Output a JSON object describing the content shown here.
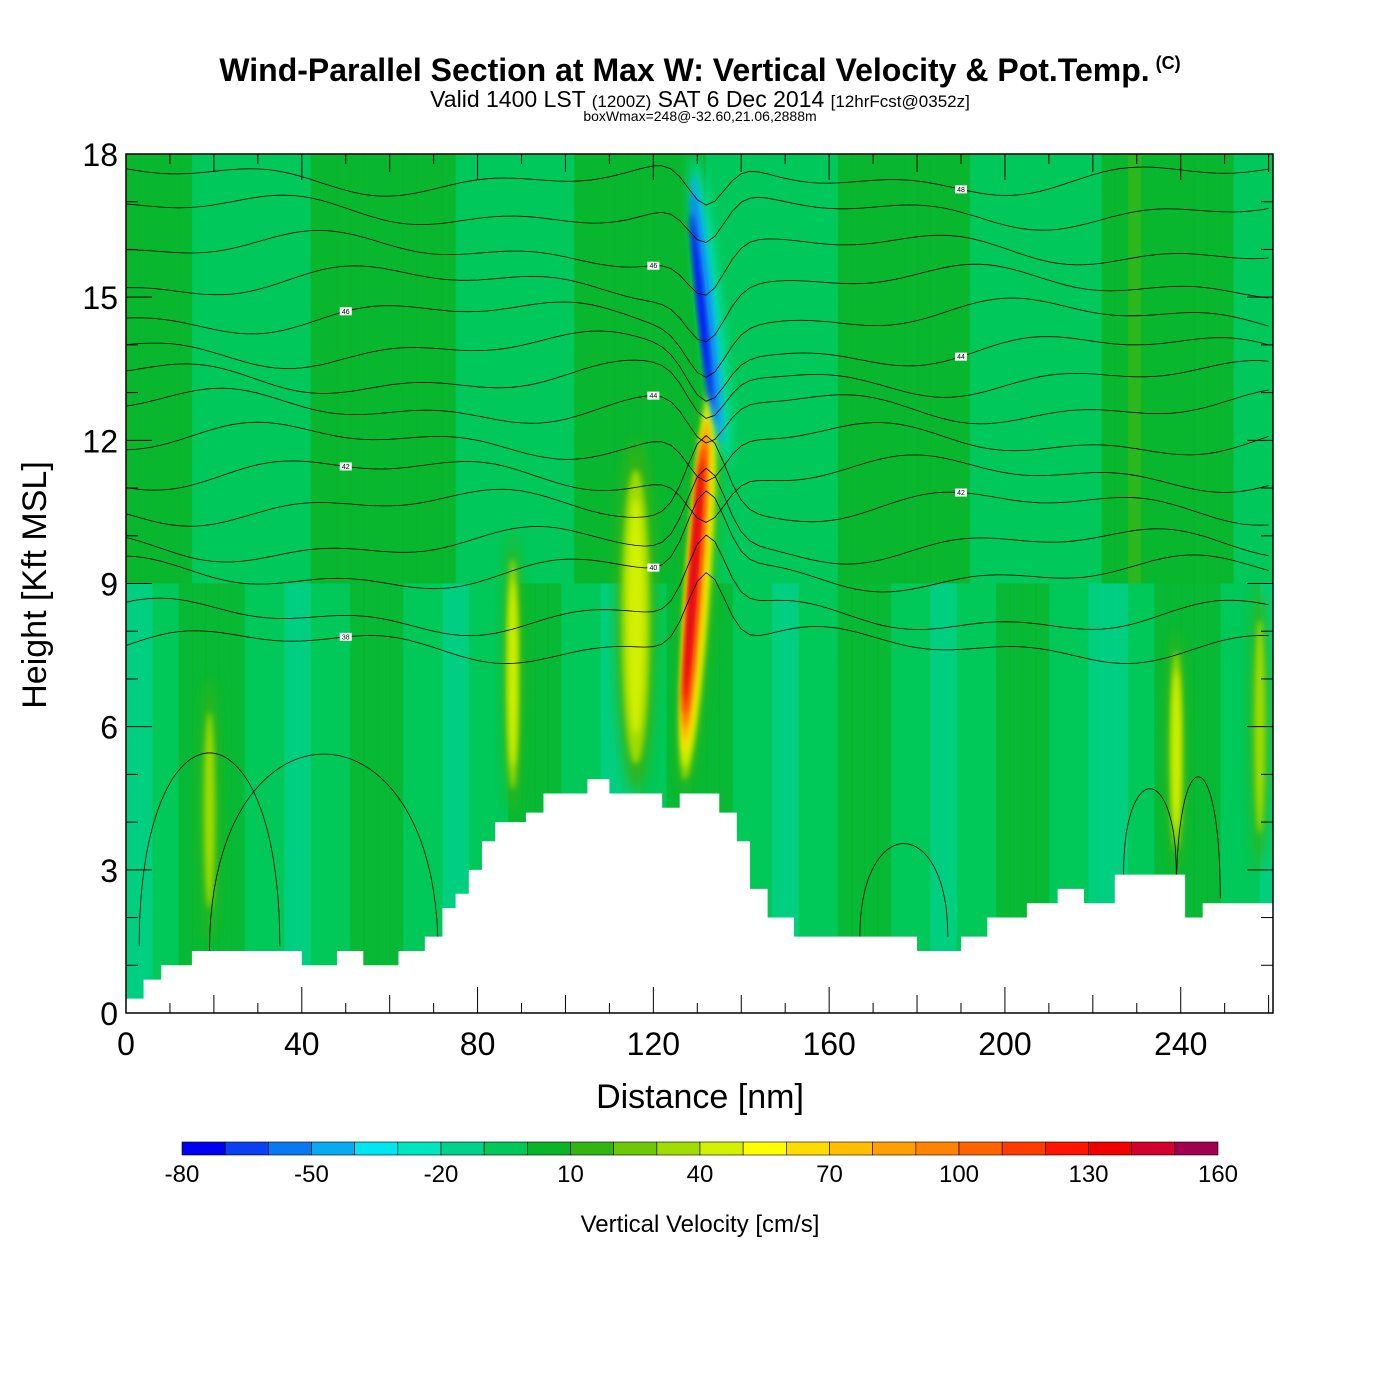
{
  "header": {
    "title": "Wind-Parallel Section at Max W: Vertical Velocity & Pot.Temp.",
    "copyright": "(C)",
    "valid_prefix": "Valid 1400 LST",
    "valid_utc": "(1200Z)",
    "valid_date": "SAT 6 Dec 2014",
    "forecast": "[12hrFcst@0352z]",
    "box_info": "boxWmax=248@-32.60,21.06,2888m"
  },
  "chart_data": {
    "type": "heatmap",
    "title": "Wind-Parallel Section at Max W: Vertical Velocity & Pot.Temp.",
    "xlabel": "Distance [nm]",
    "ylabel": "Height [Kft MSL]",
    "xlim": [
      0,
      261
    ],
    "ylim": [
      0,
      18
    ],
    "x_ticks": [
      0,
      40,
      80,
      120,
      160,
      200,
      240
    ],
    "y_ticks": [
      0,
      3,
      6,
      9,
      12,
      15,
      18
    ],
    "colorbar": {
      "label": "Vertical Velocity [cm/s]",
      "tick_labels": [
        "-80",
        "-50",
        "-20",
        "10",
        "40",
        "70",
        "100",
        "130",
        "160"
      ],
      "tick_values": [
        -80,
        -50,
        -20,
        10,
        40,
        70,
        100,
        130,
        160
      ],
      "bins": [
        {
          "min": -80,
          "max": -70,
          "color": "#0000f0"
        },
        {
          "min": -70,
          "max": -60,
          "color": "#0a40f0"
        },
        {
          "min": -60,
          "max": -50,
          "color": "#0a78f0"
        },
        {
          "min": -50,
          "max": -40,
          "color": "#0aaaf0"
        },
        {
          "min": -40,
          "max": -30,
          "color": "#00e6f0"
        },
        {
          "min": -30,
          "max": -20,
          "color": "#00e6c0"
        },
        {
          "min": -20,
          "max": -10,
          "color": "#00d28c"
        },
        {
          "min": -10,
          "max": 0,
          "color": "#00c85a"
        },
        {
          "min": 0,
          "max": 10,
          "color": "#0ab428"
        },
        {
          "min": 10,
          "max": 20,
          "color": "#32b414"
        },
        {
          "min": 20,
          "max": 30,
          "color": "#6ec80a"
        },
        {
          "min": 30,
          "max": 40,
          "color": "#a0dc00"
        },
        {
          "min": 40,
          "max": 50,
          "color": "#d2f000"
        },
        {
          "min": 50,
          "max": 60,
          "color": "#ffff00"
        },
        {
          "min": 60,
          "max": 70,
          "color": "#ffdc00"
        },
        {
          "min": 70,
          "max": 80,
          "color": "#ffbe00"
        },
        {
          "min": 80,
          "max": 90,
          "color": "#ffa000"
        },
        {
          "min": 90,
          "max": 100,
          "color": "#ff8200"
        },
        {
          "min": 100,
          "max": 110,
          "color": "#ff6400"
        },
        {
          "min": 110,
          "max": 120,
          "color": "#ff3c00"
        },
        {
          "min": 120,
          "max": 130,
          "color": "#ff1400"
        },
        {
          "min": 130,
          "max": 140,
          "color": "#f00000"
        },
        {
          "min": 140,
          "max": 150,
          "color": "#d2002d"
        },
        {
          "min": 150,
          "max": 160,
          "color": "#a00050"
        }
      ]
    },
    "terrain_kft": [
      [
        0,
        0.3
      ],
      [
        4,
        0.7
      ],
      [
        8,
        1.0
      ],
      [
        15,
        1.3
      ],
      [
        35,
        1.3
      ],
      [
        40,
        1.0
      ],
      [
        48,
        1.3
      ],
      [
        54,
        1.0
      ],
      [
        62,
        1.3
      ],
      [
        68,
        1.6
      ],
      [
        72,
        2.2
      ],
      [
        75,
        2.5
      ],
      [
        78,
        3.0
      ],
      [
        81,
        3.6
      ],
      [
        84,
        4.0
      ],
      [
        88,
        4.0
      ],
      [
        91,
        4.2
      ],
      [
        95,
        4.6
      ],
      [
        102,
        4.6
      ],
      [
        105,
        4.9
      ],
      [
        110,
        4.6
      ],
      [
        118,
        4.6
      ],
      [
        122,
        4.3
      ],
      [
        126,
        4.6
      ],
      [
        132,
        4.6
      ],
      [
        135,
        4.2
      ],
      [
        139,
        3.6
      ],
      [
        142,
        2.6
      ],
      [
        146,
        2.0
      ],
      [
        152,
        1.6
      ],
      [
        170,
        1.6
      ],
      [
        180,
        1.3
      ],
      [
        190,
        1.6
      ],
      [
        196,
        2.0
      ],
      [
        205,
        2.3
      ],
      [
        212,
        2.6
      ],
      [
        218,
        2.3
      ],
      [
        225,
        2.9
      ],
      [
        235,
        2.9
      ],
      [
        241,
        2.0
      ],
      [
        245,
        2.3
      ],
      [
        261,
        2.6
      ]
    ],
    "features": [
      {
        "name": "main-updraft",
        "x": 130.5,
        "y0": 4.6,
        "y1": 13.5,
        "peak_cm_s": 150
      },
      {
        "name": "downdraft-aloft",
        "x": 133,
        "y0": 11.5,
        "y1": 18,
        "min_cm_s": -75
      },
      {
        "name": "updraft-115nm",
        "x": 116,
        "y0": 4.6,
        "y1": 12,
        "peak_cm_s": 55
      },
      {
        "name": "updraft-88nm",
        "x": 88,
        "y0": 4.2,
        "y1": 10,
        "peak_cm_s": 45
      },
      {
        "name": "updraft-240nm",
        "x": 239,
        "y0": 3.0,
        "y1": 8,
        "peak_cm_s": 45
      },
      {
        "name": "updraft-258nm",
        "x": 258,
        "y0": 3.0,
        "y1": 9,
        "peak_cm_s": 40
      },
      {
        "name": "updraft-19nm",
        "x": 19,
        "y0": 1.5,
        "y1": 7,
        "peak_cm_s": 40
      }
    ],
    "contours": [
      {
        "label": "38",
        "base_kft": 7.7
      },
      {
        "label": "38",
        "base_kft": 8.3
      },
      {
        "label": "40",
        "base_kft": 9.2
      },
      {
        "label": "40",
        "base_kft": 9.8
      },
      {
        "label": "42",
        "base_kft": 10.6
      },
      {
        "label": "42",
        "base_kft": 11.3
      },
      {
        "label": "42",
        "base_kft": 12.0
      },
      {
        "label": "44",
        "base_kft": 12.7
      },
      {
        "label": "44",
        "base_kft": 13.3
      },
      {
        "label": "44",
        "base_kft": 13.9
      },
      {
        "label": "46",
        "base_kft": 14.6
      },
      {
        "label": "46",
        "base_kft": 15.3
      },
      {
        "label": "46",
        "base_kft": 16.0
      },
      {
        "label": "48",
        "base_kft": 16.8
      },
      {
        "label": "48",
        "base_kft": 17.5
      }
    ]
  }
}
